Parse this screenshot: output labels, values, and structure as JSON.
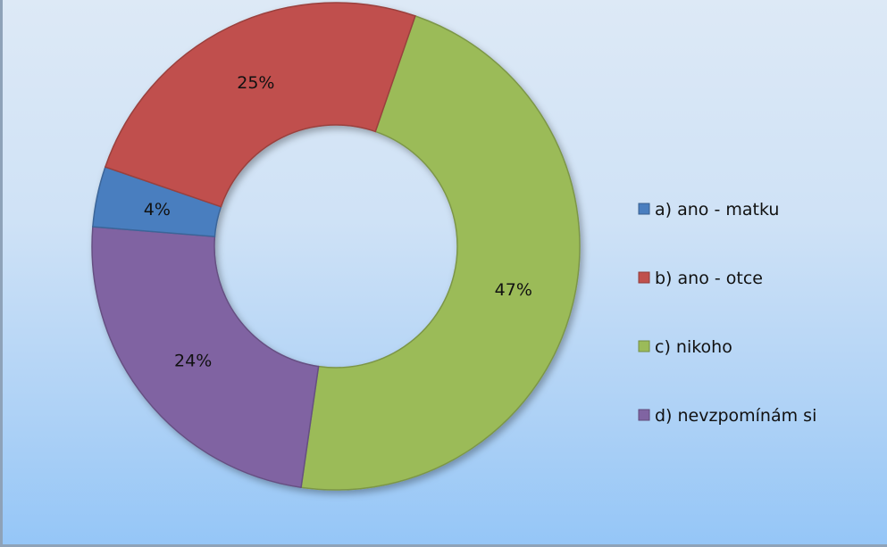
{
  "chart_data": {
    "type": "doughnut",
    "categories": [
      "a) ano - matku",
      "b) ano - otce",
      "c) nikoho",
      "d) nevzpomínám si"
    ],
    "values": [
      4,
      25,
      47,
      24
    ],
    "data_labels": [
      "4%",
      "25%",
      "47%",
      "24%"
    ],
    "colors": [
      "#4a7ebf",
      "#c0504d",
      "#9bbb59",
      "#8064a2"
    ],
    "title": "",
    "legend_position": "right"
  }
}
